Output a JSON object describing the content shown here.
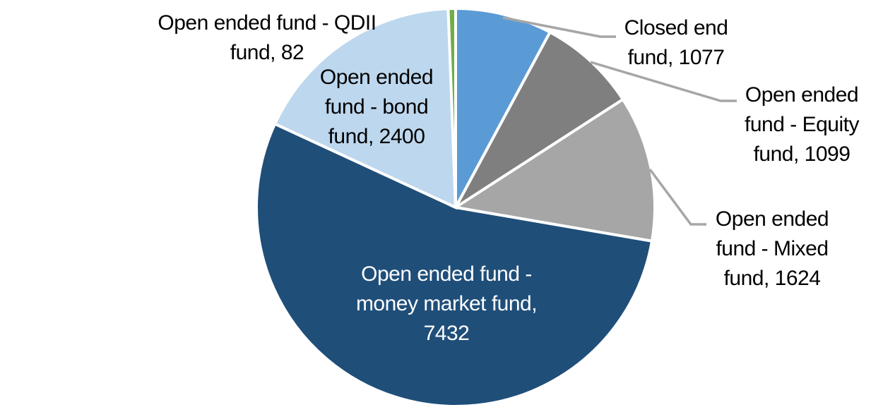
{
  "chart_data": {
    "type": "pie",
    "total": 13714,
    "direction": "clockwise",
    "start_angle_deg": 0,
    "background": "#FFFFFF",
    "slice_border_color": "#FFFFFF",
    "leader_line_color": "#A6A6A6",
    "slices": [
      {
        "name": "Closed end fund",
        "value": 1077,
        "color": "#5B9BD5",
        "label": "Closed end\nfund, 1077",
        "label_color": "#000000",
        "label_placement": "outside-right",
        "leader_line": true
      },
      {
        "name": "Open ended fund - Equity fund",
        "value": 1099,
        "color": "#7F7F7F",
        "label": "Open ended\nfund - Equity\nfund, 1099",
        "label_color": "#000000",
        "label_placement": "outside-right",
        "leader_line": true
      },
      {
        "name": "Open ended fund - Mixed fund",
        "value": 1624,
        "color": "#A6A6A6",
        "label": "Open ended\nfund - Mixed\nfund, 1624",
        "label_color": "#000000",
        "label_placement": "outside-right",
        "leader_line": true
      },
      {
        "name": "Open ended fund - money market fund",
        "value": 7432,
        "color": "#1F4E79",
        "label": "Open ended fund -\nmoney market fund,\n7432",
        "label_color": "#FFFFFF",
        "label_placement": "inside",
        "leader_line": false
      },
      {
        "name": "Open ended fund - bond fund",
        "value": 2400,
        "color": "#BDD7EE",
        "label": "Open ended\nfund - bond\nfund, 2400",
        "label_color": "#000000",
        "label_placement": "inside-top-left",
        "leader_line": false
      },
      {
        "name": "Open ended fund - QDII fund",
        "value": 82,
        "color": "#70AD47",
        "label": "Open ended fund - QDII\nfund, 82",
        "label_color": "#000000",
        "label_placement": "outside-top-left",
        "leader_line": false
      }
    ]
  }
}
